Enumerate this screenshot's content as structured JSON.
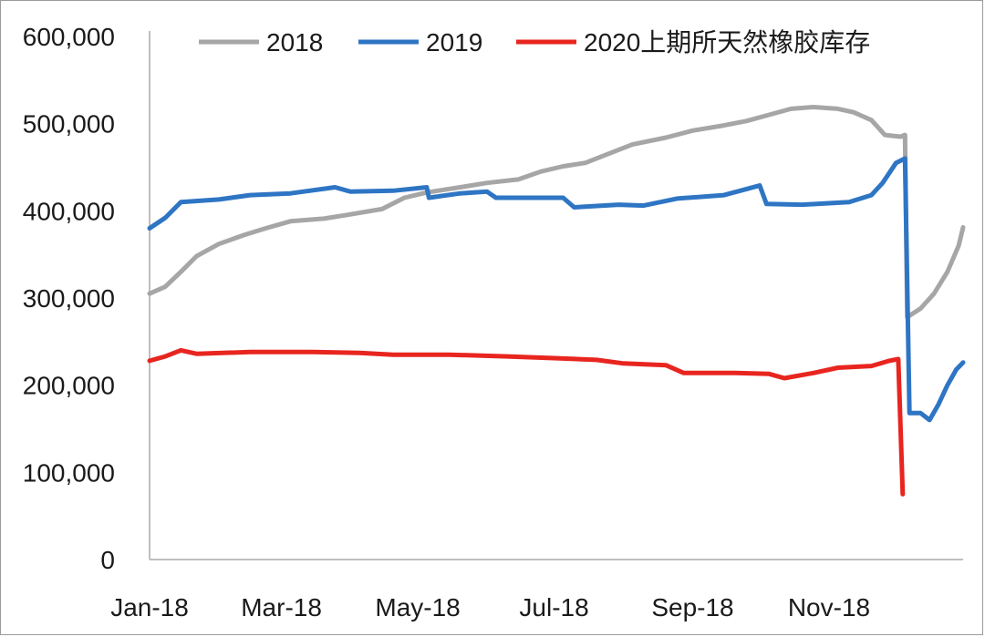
{
  "chart_data": {
    "type": "line",
    "title": "",
    "xlabel": "",
    "ylabel": "",
    "x_ticks": [
      "Jan-18",
      "Mar-18",
      "May-18",
      "Jul-18",
      "Sep-18",
      "Nov-18"
    ],
    "y_ticks": [
      "0",
      "100,000",
      "200,000",
      "300,000",
      "400,000",
      "500,000",
      "600,000"
    ],
    "ylim": [
      0,
      600000
    ],
    "xlim": [
      "2018-01-01",
      "2018-12-31"
    ],
    "grid": false,
    "legend_position": "top",
    "series": [
      {
        "name": "2018",
        "color": "#a6a6a6",
        "points": [
          [
            "2018-01-01",
            305000
          ],
          [
            "2018-01-08",
            313000
          ],
          [
            "2018-01-15",
            330000
          ],
          [
            "2018-01-22",
            348000
          ],
          [
            "2018-02-01",
            362000
          ],
          [
            "2018-02-12",
            372000
          ],
          [
            "2018-02-22",
            380000
          ],
          [
            "2018-03-05",
            388000
          ],
          [
            "2018-03-20",
            391000
          ],
          [
            "2018-04-01",
            396000
          ],
          [
            "2018-04-15",
            402000
          ],
          [
            "2018-04-25",
            415000
          ],
          [
            "2018-05-05",
            421000
          ],
          [
            "2018-05-20",
            427000
          ],
          [
            "2018-06-01",
            432000
          ],
          [
            "2018-06-15",
            436000
          ],
          [
            "2018-06-25",
            445000
          ],
          [
            "2018-07-05",
            451000
          ],
          [
            "2018-07-15",
            455000
          ],
          [
            "2018-07-25",
            465000
          ],
          [
            "2018-08-05",
            476000
          ],
          [
            "2018-08-20",
            484000
          ],
          [
            "2018-09-01",
            492000
          ],
          [
            "2018-09-15",
            498000
          ],
          [
            "2018-09-25",
            503000
          ],
          [
            "2018-10-05",
            510000
          ],
          [
            "2018-10-15",
            517000
          ],
          [
            "2018-10-25",
            519000
          ],
          [
            "2018-11-05",
            517000
          ],
          [
            "2018-11-12",
            513000
          ],
          [
            "2018-11-20",
            504000
          ],
          [
            "2018-11-26",
            487000
          ],
          [
            "2018-12-03",
            485000
          ],
          [
            "2018-12-05",
            487000
          ],
          [
            "2018-12-06",
            278000
          ],
          [
            "2018-12-12",
            288000
          ],
          [
            "2018-12-18",
            305000
          ],
          [
            "2018-12-24",
            330000
          ],
          [
            "2018-12-29",
            360000
          ],
          [
            "2018-12-31",
            381000
          ]
        ]
      },
      {
        "name": "2019",
        "color": "#2e75c4",
        "points": [
          [
            "2018-01-01",
            380000
          ],
          [
            "2018-01-08",
            392000
          ],
          [
            "2018-01-15",
            410000
          ],
          [
            "2018-02-01",
            413000
          ],
          [
            "2018-02-15",
            418000
          ],
          [
            "2018-03-05",
            420000
          ],
          [
            "2018-03-25",
            427000
          ],
          [
            "2018-04-01",
            422000
          ],
          [
            "2018-04-20",
            423000
          ],
          [
            "2018-05-05",
            427000
          ],
          [
            "2018-05-06",
            415000
          ],
          [
            "2018-05-20",
            420000
          ],
          [
            "2018-06-01",
            422000
          ],
          [
            "2018-06-05",
            415000
          ],
          [
            "2018-07-05",
            415000
          ],
          [
            "2018-07-10",
            404000
          ],
          [
            "2018-07-30",
            407000
          ],
          [
            "2018-08-10",
            406000
          ],
          [
            "2018-08-25",
            414000
          ],
          [
            "2018-09-15",
            418000
          ],
          [
            "2018-10-01",
            429000
          ],
          [
            "2018-10-04",
            408000
          ],
          [
            "2018-10-20",
            407000
          ],
          [
            "2018-11-10",
            410000
          ],
          [
            "2018-11-20",
            418000
          ],
          [
            "2018-11-25",
            432000
          ],
          [
            "2018-12-01",
            455000
          ],
          [
            "2018-12-05",
            460000
          ],
          [
            "2018-12-07",
            168000
          ],
          [
            "2018-12-12",
            168000
          ],
          [
            "2018-12-16",
            160000
          ],
          [
            "2018-12-20",
            178000
          ],
          [
            "2018-12-24",
            200000
          ],
          [
            "2018-12-28",
            218000
          ],
          [
            "2018-12-31",
            226000
          ]
        ]
      },
      {
        "name": "2020上期所天然橡胶库存",
        "color": "#e8251f",
        "points": [
          [
            "2018-01-01",
            228000
          ],
          [
            "2018-01-08",
            233000
          ],
          [
            "2018-01-15",
            240000
          ],
          [
            "2018-01-22",
            236000
          ],
          [
            "2018-02-15",
            238000
          ],
          [
            "2018-03-15",
            238000
          ],
          [
            "2018-04-05",
            237000
          ],
          [
            "2018-04-20",
            235000
          ],
          [
            "2018-05-15",
            235000
          ],
          [
            "2018-06-10",
            233000
          ],
          [
            "2018-07-01",
            231000
          ],
          [
            "2018-07-20",
            229000
          ],
          [
            "2018-08-01",
            225000
          ],
          [
            "2018-08-20",
            223000
          ],
          [
            "2018-08-28",
            214000
          ],
          [
            "2018-09-20",
            214000
          ],
          [
            "2018-10-05",
            213000
          ],
          [
            "2018-10-12",
            208000
          ],
          [
            "2018-10-25",
            214000
          ],
          [
            "2018-11-05",
            220000
          ],
          [
            "2018-11-20",
            222000
          ],
          [
            "2018-11-28",
            228000
          ],
          [
            "2018-12-02",
            230000
          ],
          [
            "2018-12-04",
            75000
          ]
        ]
      }
    ]
  }
}
